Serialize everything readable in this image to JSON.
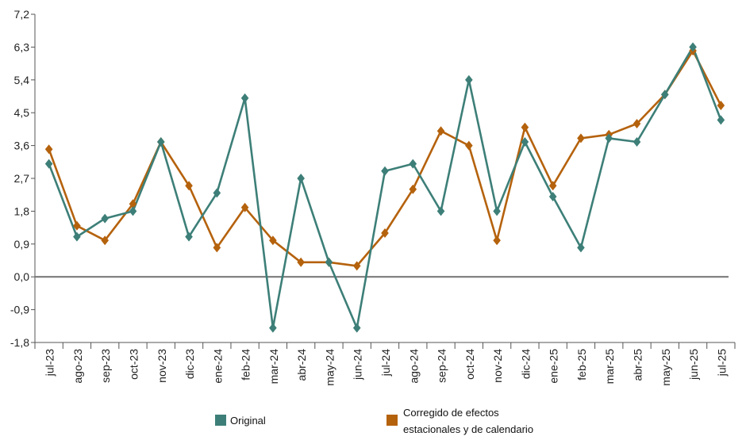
{
  "chart_data": {
    "type": "line",
    "categories": [
      "jul-23",
      "ago-23",
      "sep-23",
      "oct-23",
      "nov-23",
      "dic-23",
      "ene-24",
      "feb-24",
      "mar-24",
      "abr-24",
      "may-24",
      "jun-24",
      "jul-24",
      "ago-24",
      "sep-24",
      "oct-24",
      "nov-24",
      "dic-24",
      "ene-25",
      "feb-25",
      "mar-25",
      "abr-25",
      "may-25",
      "jun-25",
      "jul-25"
    ],
    "series": [
      {
        "name": "Original",
        "color": "#3d7f78",
        "marker": "diamond",
        "values": [
          3.1,
          1.1,
          1.6,
          1.8,
          3.7,
          1.1,
          2.3,
          4.9,
          -1.4,
          2.7,
          0.4,
          -1.4,
          2.9,
          3.1,
          1.8,
          5.4,
          1.8,
          3.7,
          2.2,
          0.8,
          3.8,
          3.7,
          5.0,
          6.3,
          4.3
        ]
      },
      {
        "name": "Corregido de efectos estacionales y de calendario",
        "legend_lines": [
          "Corregido de efectos",
          "estacionales y de calendario"
        ],
        "color": "#b5620d",
        "marker": "diamond",
        "values": [
          3.5,
          1.4,
          1.0,
          2.0,
          3.7,
          2.5,
          0.8,
          1.9,
          1.0,
          0.4,
          0.4,
          0.3,
          1.2,
          2.4,
          4.0,
          3.6,
          1.0,
          4.1,
          2.5,
          3.8,
          3.9,
          4.2,
          5.0,
          6.2,
          4.7
        ]
      }
    ],
    "yticks": [
      "7,2",
      "6,3",
      "5,4",
      "4,5",
      "3,6",
      "2,7",
      "1,8",
      "0,9",
      "0,0",
      "-0,9",
      "-1,8"
    ],
    "ylim": [
      -1.8,
      7.2
    ],
    "ytick_step": 0.9,
    "zero_line": true,
    "grid": false,
    "legend_position": "bottom"
  }
}
